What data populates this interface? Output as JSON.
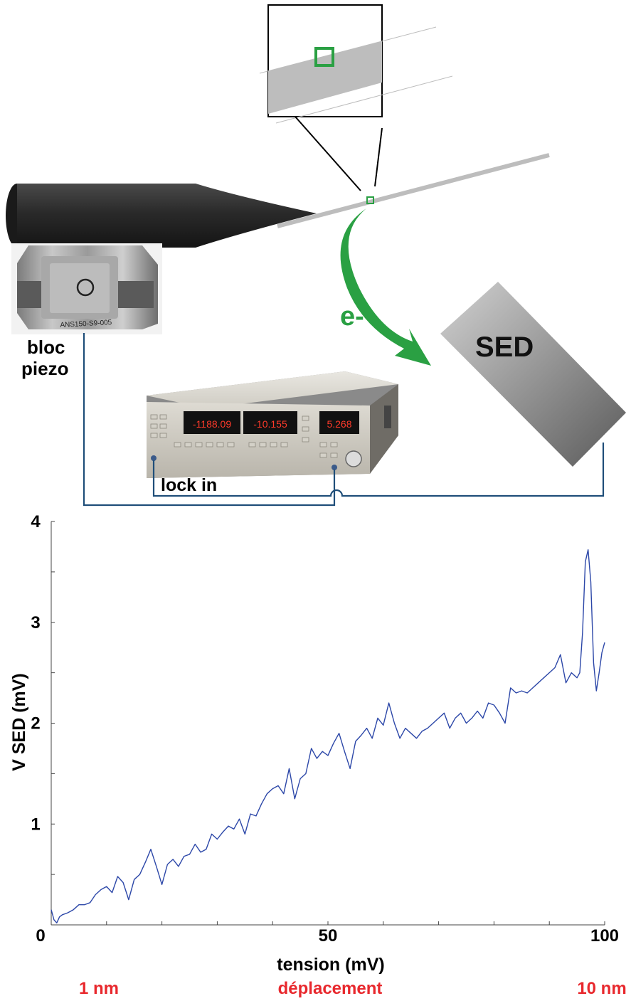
{
  "diagram": {
    "piezo_label_line1": "bloc",
    "piezo_label_line2": "piezo",
    "piezo_engraving": "ANS150-S9-005",
    "electron_label": "e-",
    "detector_label": "SED",
    "lockin_label": "lock in",
    "lockin_display_1": "-1188.09",
    "lockin_display_2": "-10.155",
    "lockin_display_3": "5.268",
    "colors": {
      "cable": "#1f4e79",
      "electron_arrow": "#2aa043",
      "detector_gradient_start": "#d2d2d2",
      "detector_gradient_end": "#5a5a5a",
      "display_digits": "#ff3a2a"
    }
  },
  "chart_data": {
    "type": "line",
    "ylabel": "V SED (mV)",
    "xlabel": "tension (mV)",
    "xlim": [
      0,
      100
    ],
    "ylim": [
      0,
      4
    ],
    "x_ticks": [
      {
        "value": 0,
        "label": "0"
      },
      {
        "value": 50,
        "label": "50"
      },
      {
        "value": 100,
        "label": "100"
      }
    ],
    "y_ticks": [
      {
        "value": 1,
        "label": "1"
      },
      {
        "value": 2,
        "label": "2"
      },
      {
        "value": 3,
        "label": "3"
      },
      {
        "value": 4,
        "label": "4"
      }
    ],
    "secondary_axis": {
      "left_label": "1 nm",
      "center_label": "déplacement",
      "right_label": "10 nm",
      "color": "#e8282d"
    },
    "series": [
      {
        "color": "#2c47a8",
        "points": [
          [
            0,
            0.15
          ],
          [
            0.5,
            0.05
          ],
          [
            1,
            0.02
          ],
          [
            1.5,
            0.08
          ],
          [
            2,
            0.1
          ],
          [
            3,
            0.12
          ],
          [
            4,
            0.15
          ],
          [
            5,
            0.2
          ],
          [
            6,
            0.2
          ],
          [
            7,
            0.22
          ],
          [
            8,
            0.3
          ],
          [
            9,
            0.35
          ],
          [
            10,
            0.38
          ],
          [
            11,
            0.32
          ],
          [
            12,
            0.48
          ],
          [
            13,
            0.42
          ],
          [
            14,
            0.25
          ],
          [
            15,
            0.45
          ],
          [
            16,
            0.5
          ],
          [
            17,
            0.62
          ],
          [
            18,
            0.75
          ],
          [
            19,
            0.58
          ],
          [
            20,
            0.4
          ],
          [
            21,
            0.6
          ],
          [
            22,
            0.65
          ],
          [
            23,
            0.58
          ],
          [
            24,
            0.68
          ],
          [
            25,
            0.7
          ],
          [
            26,
            0.8
          ],
          [
            27,
            0.72
          ],
          [
            28,
            0.75
          ],
          [
            29,
            0.9
          ],
          [
            30,
            0.85
          ],
          [
            31,
            0.92
          ],
          [
            32,
            0.98
          ],
          [
            33,
            0.95
          ],
          [
            34,
            1.05
          ],
          [
            35,
            0.9
          ],
          [
            36,
            1.1
          ],
          [
            37,
            1.08
          ],
          [
            38,
            1.2
          ],
          [
            39,
            1.3
          ],
          [
            40,
            1.35
          ],
          [
            41,
            1.38
          ],
          [
            42,
            1.3
          ],
          [
            43,
            1.55
          ],
          [
            44,
            1.25
          ],
          [
            45,
            1.45
          ],
          [
            46,
            1.5
          ],
          [
            47,
            1.75
          ],
          [
            48,
            1.65
          ],
          [
            49,
            1.72
          ],
          [
            50,
            1.68
          ],
          [
            51,
            1.8
          ],
          [
            52,
            1.9
          ],
          [
            53,
            1.72
          ],
          [
            54,
            1.55
          ],
          [
            55,
            1.82
          ],
          [
            56,
            1.88
          ],
          [
            57,
            1.95
          ],
          [
            58,
            1.85
          ],
          [
            59,
            2.05
          ],
          [
            60,
            1.98
          ],
          [
            61,
            2.2
          ],
          [
            62,
            2.0
          ],
          [
            63,
            1.85
          ],
          [
            64,
            1.95
          ],
          [
            65,
            1.9
          ],
          [
            66,
            1.85
          ],
          [
            67,
            1.92
          ],
          [
            68,
            1.95
          ],
          [
            69,
            2.0
          ],
          [
            70,
            2.05
          ],
          [
            71,
            2.1
          ],
          [
            72,
            1.95
          ],
          [
            73,
            2.05
          ],
          [
            74,
            2.1
          ],
          [
            75,
            2.0
          ],
          [
            76,
            2.05
          ],
          [
            77,
            2.12
          ],
          [
            78,
            2.05
          ],
          [
            79,
            2.2
          ],
          [
            80,
            2.18
          ],
          [
            81,
            2.1
          ],
          [
            82,
            2.0
          ],
          [
            83,
            2.35
          ],
          [
            84,
            2.3
          ],
          [
            85,
            2.32
          ],
          [
            86,
            2.3
          ],
          [
            87,
            2.35
          ],
          [
            88,
            2.4
          ],
          [
            89,
            2.45
          ],
          [
            90,
            2.5
          ],
          [
            91,
            2.55
          ],
          [
            92,
            2.68
          ],
          [
            93,
            2.4
          ],
          [
            94,
            2.5
          ],
          [
            95,
            2.45
          ],
          [
            95.5,
            2.5
          ],
          [
            96,
            2.9
          ],
          [
            96.5,
            3.6
          ],
          [
            97,
            3.72
          ],
          [
            97.5,
            3.4
          ],
          [
            98,
            2.6
          ],
          [
            98.5,
            2.32
          ],
          [
            99,
            2.5
          ],
          [
            99.5,
            2.7
          ],
          [
            100,
            2.8
          ]
        ]
      }
    ]
  }
}
